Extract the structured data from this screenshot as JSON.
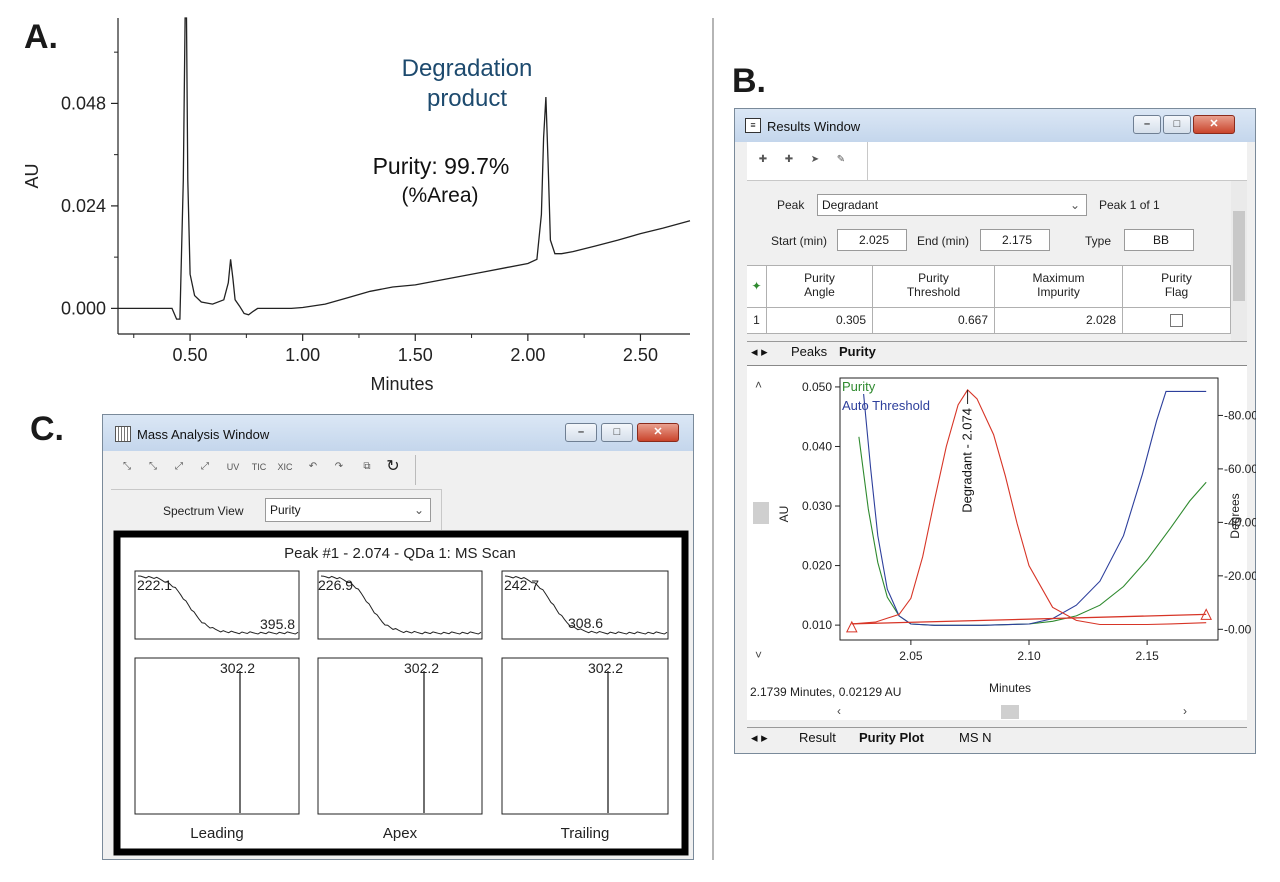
{
  "labels": {
    "a": "A.",
    "b": "B.",
    "c": "C."
  },
  "chart_data": [
    {
      "id": "A",
      "type": "line",
      "title": "",
      "xlabel": "Minutes",
      "ylabel": "AU",
      "xlim": [
        0.18,
        2.72
      ],
      "ylim": [
        -0.006,
        0.068
      ],
      "xticks": [
        0.5,
        1.0,
        1.5,
        2.0,
        2.5
      ],
      "xtick_labels": [
        "0.50",
        "1.00",
        "1.50",
        "2.00",
        "2.50"
      ],
      "yticks": [
        0.0,
        0.024,
        0.048
      ],
      "ytick_labels": [
        "0.000",
        "0.024",
        "0.048"
      ],
      "annotations": {
        "peak_name_line1": "Degradation",
        "peak_name_line2": "product",
        "purity_line1": "Purity: 99.7%",
        "purity_line2": "(%Area)"
      },
      "series": [
        {
          "name": "chromatogram",
          "x": [
            0.18,
            0.42,
            0.44,
            0.455,
            0.47,
            0.478,
            0.484,
            0.49,
            0.5,
            0.52,
            0.55,
            0.6,
            0.65,
            0.67,
            0.68,
            0.69,
            0.7,
            0.72,
            0.74,
            0.76,
            0.78,
            0.8,
            0.85,
            0.9,
            0.95,
            1.0,
            1.1,
            1.2,
            1.3,
            1.4,
            1.5,
            1.6,
            1.7,
            1.8,
            1.9,
            2.0,
            2.04,
            2.06,
            2.07,
            2.08,
            2.09,
            2.1,
            2.12,
            2.15,
            2.2,
            2.3,
            2.4,
            2.5,
            2.6,
            2.72
          ],
          "y": [
            0.0,
            0.0,
            -0.0025,
            -0.0025,
            0.03,
            0.068,
            0.068,
            0.03,
            0.008,
            0.003,
            0.0015,
            0.001,
            0.002,
            0.006,
            0.0115,
            0.007,
            0.002,
            0.0005,
            -0.0012,
            -0.0015,
            -0.0007,
            0.0,
            0.0,
            0.0,
            0.0,
            0.0002,
            0.001,
            0.0025,
            0.004,
            0.005,
            0.0055,
            0.0065,
            0.0075,
            0.0085,
            0.0095,
            0.0105,
            0.0115,
            0.022,
            0.04,
            0.0495,
            0.034,
            0.016,
            0.0128,
            0.0128,
            0.0133,
            0.0146,
            0.016,
            0.0175,
            0.0188,
            0.0205
          ]
        }
      ]
    },
    {
      "id": "B-purity-plot",
      "type": "line",
      "xlabel": "Minutes",
      "ylabel": "AU",
      "y2label": "Degrees",
      "xlim": [
        2.02,
        2.18
      ],
      "ylim": [
        0.0075,
        0.0515
      ],
      "y2lim": [
        -4,
        94
      ],
      "xticks": [
        2.05,
        2.1,
        2.15
      ],
      "xtick_labels": [
        "2.05",
        "2.10",
        "2.15"
      ],
      "yticks": [
        0.01,
        0.02,
        0.03,
        0.04,
        0.05
      ],
      "ytick_labels": [
        "0.010",
        "0.020",
        "0.030",
        "0.040",
        "0.050"
      ],
      "y2ticks": [
        0,
        20,
        40,
        60,
        80
      ],
      "y2tick_labels": [
        "-0.00",
        "-20.00",
        "-40.00",
        "-60.00",
        "-80.00"
      ],
      "peak_label": "Degradant - 2.074",
      "peak_x": 2.074,
      "cursor_readout": "2.1739 Minutes, 0.02129 AU",
      "series": [
        {
          "name": "Purity",
          "color": "#2f8a2f",
          "axis": "y2",
          "x": [
            2.028,
            2.032,
            2.036,
            2.04,
            2.045,
            2.05,
            2.06,
            2.08,
            2.1,
            2.11,
            2.12,
            2.13,
            2.14,
            2.15,
            2.16,
            2.168,
            2.175
          ],
          "y": [
            72,
            45,
            25,
            12,
            5,
            2,
            1.5,
            1.5,
            2,
            3,
            5,
            9,
            16,
            26,
            38,
            48,
            55
          ]
        },
        {
          "name": "Auto Threshold",
          "color": "#2d3f9c",
          "axis": "y2",
          "x": [
            2.03,
            2.033,
            2.036,
            2.04,
            2.045,
            2.05,
            2.06,
            2.08,
            2.1,
            2.11,
            2.12,
            2.13,
            2.14,
            2.148,
            2.154,
            2.158,
            2.162,
            2.175
          ],
          "y": [
            88,
            60,
            35,
            15,
            5,
            2,
            1.5,
            1.5,
            2,
            4,
            9,
            18,
            35,
            58,
            78,
            89,
            89,
            89
          ]
        },
        {
          "name": "Spectrum",
          "color": "#d73527",
          "axis": "y",
          "x": [
            2.025,
            2.035,
            2.045,
            2.05,
            2.055,
            2.06,
            2.065,
            2.07,
            2.074,
            2.078,
            2.085,
            2.09,
            2.095,
            2.1,
            2.11,
            2.12,
            2.13,
            2.14,
            2.15,
            2.16,
            2.175
          ],
          "y": [
            0.0102,
            0.0105,
            0.0118,
            0.0145,
            0.0215,
            0.031,
            0.04,
            0.047,
            0.0495,
            0.048,
            0.042,
            0.035,
            0.027,
            0.02,
            0.013,
            0.0108,
            0.0101,
            0.0101,
            0.0101,
            0.0102,
            0.0104
          ]
        },
        {
          "name": "baseline",
          "color": "#d73527",
          "axis": "y",
          "x": [
            2.025,
            2.175
          ],
          "y": [
            0.0102,
            0.0118
          ]
        }
      ]
    }
  ],
  "results_window": {
    "title": "Results Window",
    "peak_label": "Peak",
    "peak_value": "Degradant",
    "peak_count": "Peak 1 of 1",
    "start_label": "Start (min)",
    "start_value": "2.025",
    "end_label": "End (min)",
    "end_value": "2.175",
    "type_label": "Type",
    "type_value": "BB",
    "columns": [
      "Purity\nAngle",
      "Purity\nThreshold",
      "Maximum\nImpurity",
      "Purity\nFlag"
    ],
    "row": {
      "index": "1",
      "angle": "0.305",
      "threshold": "0.667",
      "impurity": "2.028"
    },
    "tabs_top": {
      "peaks": "Peaks",
      "purity": "Purity"
    },
    "legend": {
      "purity": "Purity",
      "auto_threshold": "Auto Threshold"
    },
    "tabs_bottom": {
      "result": "Result",
      "purity_plot": "Purity Plot",
      "ms": "MS N"
    }
  },
  "mass_window": {
    "title": "Mass Analysis Window",
    "toolbar_text": [
      "UV",
      "TIC",
      "XIC"
    ],
    "spectrum_view_label": "Spectrum View",
    "spectrum_view_value": "Purity",
    "plot_title": "Peak #1 - 2.074 - QDa 1: MS Scan",
    "top_panels": [
      {
        "label_left": "222.1",
        "label_right": "395.8"
      },
      {
        "label_left": "226.9",
        "label_right": ""
      },
      {
        "label_left": "242.7",
        "label_right": "308.6"
      }
    ],
    "bottom_panels": [
      {
        "mz": "302.2",
        "name": "Leading"
      },
      {
        "mz": "302.2",
        "name": "Apex"
      },
      {
        "mz": "302.2",
        "name": "Trailing"
      }
    ]
  }
}
